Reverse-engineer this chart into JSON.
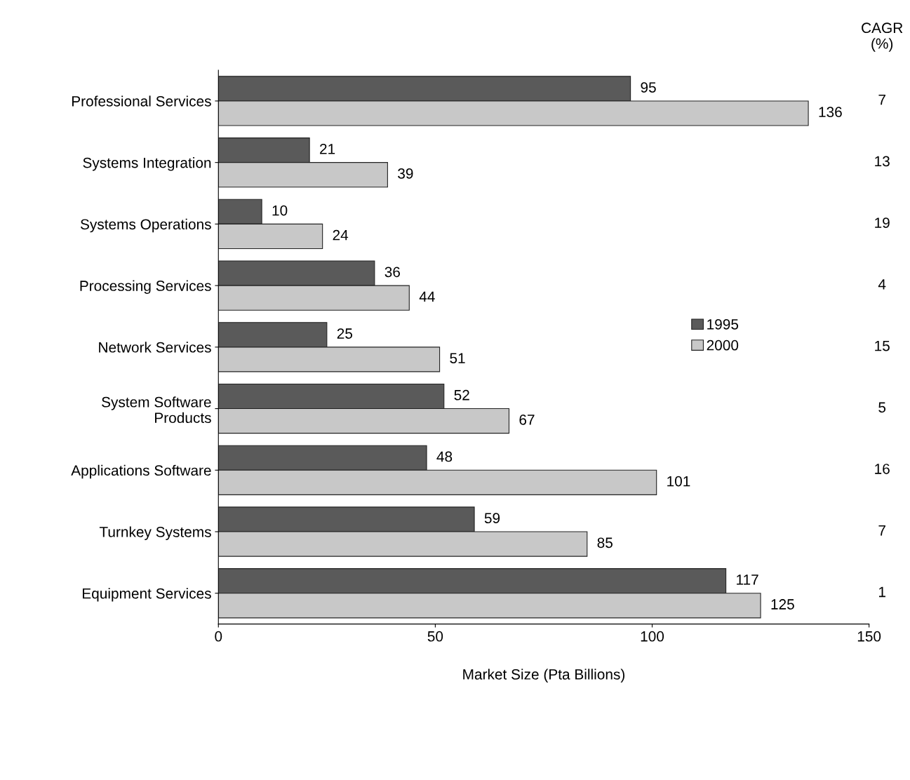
{
  "chart_data": {
    "type": "bar",
    "orientation": "horizontal",
    "categories": [
      "Professional Services",
      "Systems Integration",
      "Systems Operations",
      "Processing Services",
      "Network Services",
      "System Software\nProducts",
      "Applications Software",
      "Turnkey Systems",
      "Equipment Services"
    ],
    "series": [
      {
        "name": "1995",
        "color": "#5a5a5a",
        "values": [
          95,
          21,
          10,
          36,
          25,
          52,
          48,
          59,
          117
        ]
      },
      {
        "name": "2000",
        "color": "#c8c8c8",
        "values": [
          136,
          39,
          24,
          44,
          51,
          67,
          101,
          85,
          125
        ]
      }
    ],
    "xlabel": "Market Size (Pta Billions)",
    "xlim": [
      0,
      150
    ],
    "xticks": [
      0,
      50,
      100,
      150
    ],
    "data_labels": true,
    "legend": "right",
    "grid": false,
    "annotations": [
      "CAGR\n(%)",
      "7",
      "13",
      "19",
      "4",
      "15",
      "5",
      "16",
      "7",
      "1"
    ]
  }
}
